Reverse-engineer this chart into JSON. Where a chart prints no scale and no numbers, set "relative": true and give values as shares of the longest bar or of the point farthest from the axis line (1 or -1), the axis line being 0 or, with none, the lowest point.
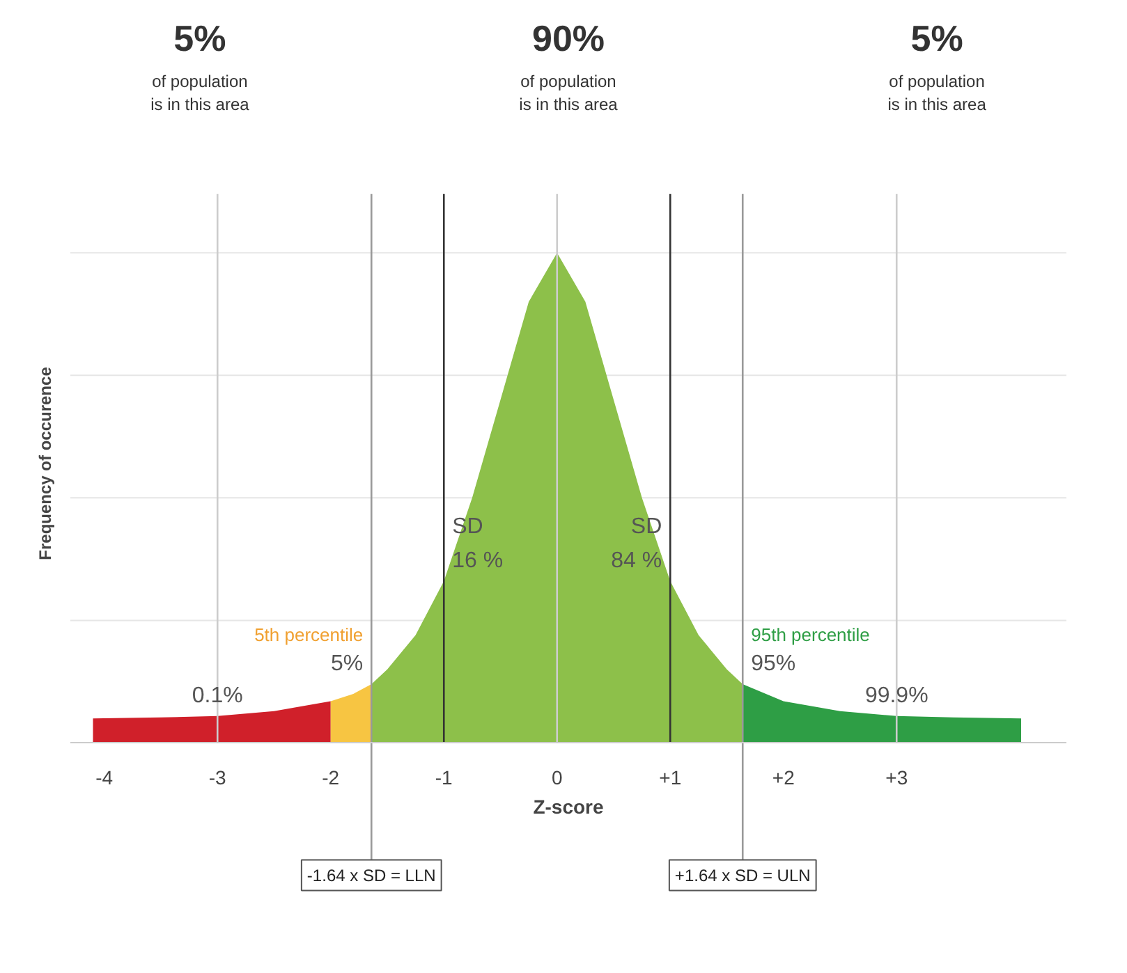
{
  "chart_data": {
    "type": "area",
    "relative": true,
    "xlabel": "Z-score",
    "ylabel": "Frequency of occurence",
    "xlim": [
      -4.3,
      4.5
    ],
    "xticks": [
      -4,
      -3,
      -2,
      {
        "value": -1,
        "label": "-1"
      },
      0,
      {
        "value": 1,
        "label": "+1"
      },
      {
        "value": 2,
        "label": "+2"
      },
      {
        "value": 3,
        "label": "+3"
      }
    ],
    "grid": false,
    "series": [
      {
        "color": "#d0202a",
        "x": [
          -4.1,
          -3.5,
          -3,
          -2.5,
          -2
        ],
        "values": [
          0.05,
          0.052,
          0.055,
          0.065,
          0.085
        ]
      },
      {
        "color": "#f7c542",
        "x": [
          -2,
          -1.8,
          -1.64
        ],
        "values": [
          0.085,
          0.1,
          0.12
        ]
      },
      {
        "color": "#8dc04a",
        "x": [
          -1.64,
          -1.5,
          -1.25,
          -1,
          -0.75,
          -0.5,
          -0.25,
          0,
          0.25,
          0.5,
          0.75,
          1,
          1.25,
          1.5,
          1.64
        ],
        "values": [
          0.12,
          0.15,
          0.22,
          0.33,
          0.5,
          0.7,
          0.9,
          1,
          0.9,
          0.7,
          0.5,
          0.33,
          0.22,
          0.15,
          0.12
        ]
      },
      {
        "color": "#2e9e45",
        "x": [
          1.64,
          2,
          2.5,
          3,
          3.5,
          4.1
        ],
        "values": [
          0.12,
          0.085,
          0.065,
          0.055,
          0.052,
          0.05
        ]
      }
    ],
    "ref_lines": [
      {
        "axis": "y",
        "value": 0.25,
        "color": "#e6e6e6"
      },
      {
        "axis": "y",
        "value": 0.5,
        "color": "#e6e6e6"
      },
      {
        "axis": "y",
        "value": 0.75,
        "color": "#e6e6e6"
      },
      {
        "axis": "y",
        "value": 1,
        "color": "#e6e6e6"
      },
      {
        "axis": "x",
        "value": -3,
        "color": "#cccccc"
      },
      {
        "axis": "x",
        "value": 0,
        "color": "#cccccc"
      },
      {
        "axis": "x",
        "value": 3,
        "color": "#cccccc"
      },
      {
        "axis": "x",
        "value": -1,
        "color": "#333333"
      },
      {
        "axis": "x",
        "value": 1,
        "color": "#333333"
      },
      {
        "axis": "x",
        "value": -1.64,
        "label": "-1.64 x SD = LLN",
        "color": "#999999"
      },
      {
        "axis": "x",
        "value": 1.64,
        "label": "+1.64 x SD = ULN",
        "color": "#999999"
      }
    ],
    "annotations": [
      "5%\nof population\nis in this area",
      "90%\nof population\nis in this area",
      "5%\nof population\nis in this area",
      {
        "text": "16 %",
        "x": -1,
        "y": 0.33
      },
      {
        "text": "84 %",
        "x": 1,
        "y": 0.33
      },
      {
        "text": "SD",
        "x": -1,
        "y": 0.4
      },
      {
        "text": "SD",
        "x": 1,
        "y": 0.4
      },
      {
        "text": "5%",
        "x": -1.64,
        "y": 0.12
      },
      {
        "text": "5th percentile",
        "x": -1.64,
        "y": 0.12
      },
      {
        "text": "95%",
        "x": 1.64,
        "y": 0.12
      },
      {
        "text": "95th percentile",
        "x": 1.64,
        "y": 0.12
      },
      {
        "text": "0.1%",
        "x": -3,
        "y": 0.055
      },
      {
        "text": "99.9%",
        "x": 3,
        "y": 0.055
      }
    ]
  }
}
